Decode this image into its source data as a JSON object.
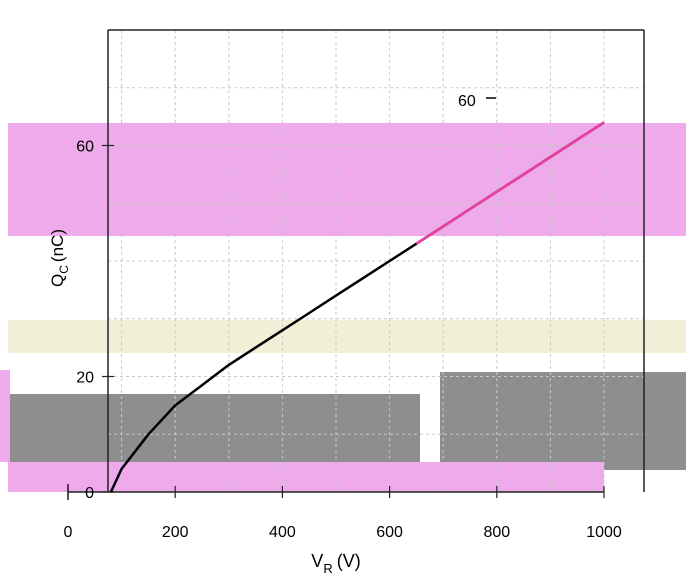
{
  "chart_data": {
    "type": "line",
    "xlabel": "V",
    "xlabel_sub": "R",
    "xlabel_unit": "(V)",
    "ylabel": "Q",
    "ylabel_sub": "C",
    "ylabel_unit": "(nC)",
    "xlim": [
      0,
      1000
    ],
    "ylim": [
      0,
      80
    ],
    "x_ticks": [
      0,
      200,
      400,
      600,
      800,
      1000
    ],
    "y_tick_labels": [
      {
        "value": 0,
        "label": "0"
      },
      {
        "value": 20,
        "label": "20"
      },
      {
        "value": 60,
        "label": "60"
      }
    ],
    "grid": true,
    "series": [
      {
        "x": [
          80,
          100,
          150,
          200,
          250,
          300,
          350,
          400,
          450,
          500,
          550,
          600,
          650,
          700,
          750,
          800,
          850,
          900,
          950,
          1000
        ],
        "y": [
          0,
          4,
          10,
          15,
          18.5,
          22,
          25,
          28,
          31,
          34,
          37,
          40,
          43,
          46,
          49,
          52,
          55,
          58,
          61,
          64
        ]
      }
    ],
    "annotations": [
      {
        "text": "60",
        "x": 740,
        "y": 73
      }
    ]
  },
  "colors": {
    "curve": "#000000",
    "grid": "#c8c8c8",
    "axis": "#222222",
    "accent_magenta": "#ee3fa0",
    "band_pink": "#eeaaea",
    "band_cream": "#f1efd6",
    "band_gray": "#8e8e8e"
  }
}
